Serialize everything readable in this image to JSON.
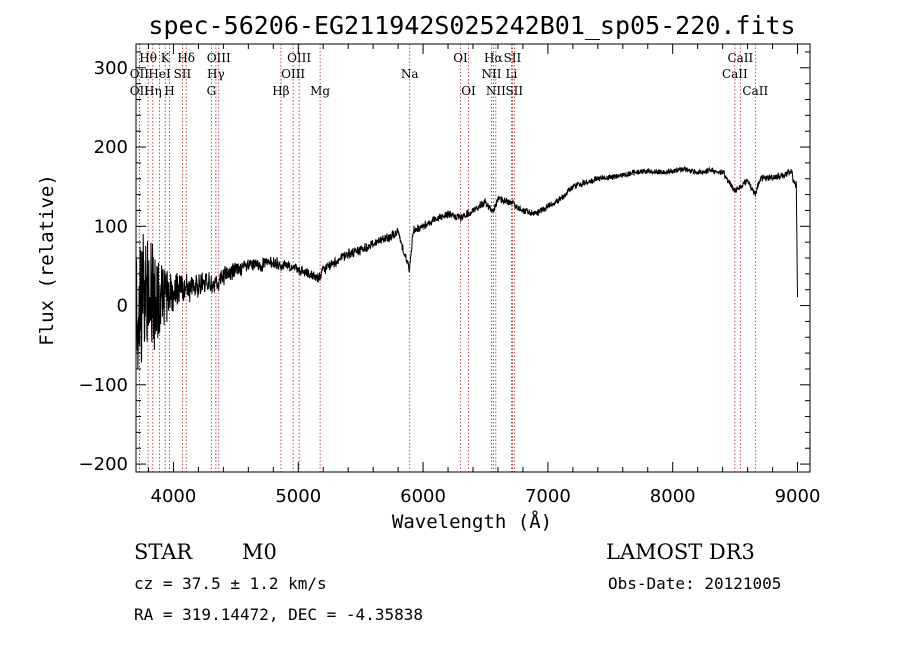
{
  "chart_data": {
    "type": "line",
    "title": "spec-56206-EG211942S025242B01_sp05-220.fits",
    "xlabel": "Wavelength (Å)",
    "ylabel": "Flux (relative)",
    "xlim": [
      3700,
      9100
    ],
    "ylim": [
      -210,
      330
    ],
    "x_ticks": [
      4000,
      5000,
      6000,
      7000,
      8000,
      9000
    ],
    "y_ticks": [
      -200,
      -100,
      0,
      100,
      200,
      300
    ],
    "x_tick_labels": [
      "4000",
      "5000",
      "6000",
      "7000",
      "8000",
      "9000"
    ],
    "y_tick_labels": [
      "−200",
      "−100",
      "0",
      "100",
      "200",
      "300"
    ],
    "spectrum_anchors": {
      "x": [
        3700,
        3750,
        3800,
        3850,
        3900,
        3950,
        4000,
        4050,
        4100,
        4200,
        4300,
        4340,
        4400,
        4500,
        4600,
        4700,
        4800,
        4861,
        4900,
        5000,
        5100,
        5175,
        5200,
        5300,
        5400,
        5500,
        5600,
        5700,
        5800,
        5893,
        5920,
        6000,
        6100,
        6200,
        6300,
        6400,
        6500,
        6563,
        6600,
        6700,
        6800,
        6900,
        7000,
        7100,
        7200,
        7300,
        7400,
        7500,
        7600,
        7700,
        7800,
        7900,
        8000,
        8100,
        8200,
        8300,
        8400,
        8498,
        8542,
        8600,
        8662,
        8700,
        8800,
        8900,
        8950,
        8990,
        9000
      ],
      "y": [
        5,
        10,
        15,
        10,
        12,
        14,
        18,
        20,
        22,
        25,
        30,
        28,
        38,
        45,
        50,
        52,
        55,
        50,
        52,
        45,
        38,
        35,
        45,
        55,
        65,
        70,
        78,
        85,
        92,
        45,
        95,
        100,
        110,
        115,
        110,
        120,
        130,
        118,
        135,
        130,
        120,
        115,
        125,
        135,
        150,
        155,
        160,
        162,
        165,
        168,
        170,
        168,
        170,
        172,
        168,
        170,
        168,
        145,
        150,
        158,
        140,
        160,
        162,
        165,
        168,
        150,
        10
      ]
    },
    "noise_amplitude_anchors": {
      "x": [
        3700,
        3800,
        3900,
        4000,
        4200,
        4500,
        5000,
        6000,
        7000,
        8000,
        8900,
        9000
      ],
      "y": [
        90,
        70,
        40,
        22,
        14,
        9,
        6,
        5,
        4,
        3,
        4,
        6
      ]
    },
    "spectral_lines": [
      {
        "label": "Hθ",
        "wavelength": 3797,
        "row": 1
      },
      {
        "label": "OII",
        "wavelength": 3727,
        "row": 2
      },
      {
        "label": "OII",
        "wavelength": 3727,
        "row": 3
      },
      {
        "label": "Hη",
        "wavelength": 3835,
        "row": 3
      },
      {
        "label": "HeI",
        "wavelength": 3889,
        "row": 2
      },
      {
        "label": "K",
        "wavelength": 3934,
        "row": 1
      },
      {
        "label": "H",
        "wavelength": 3968,
        "row": 3
      },
      {
        "label": "SII",
        "wavelength": 4072,
        "row": 2
      },
      {
        "label": "Hδ",
        "wavelength": 4102,
        "row": 1
      },
      {
        "label": "OIII",
        "wavelength": 4363,
        "row": 1
      },
      {
        "label": "Hγ",
        "wavelength": 4340,
        "row": 2
      },
      {
        "label": "G",
        "wavelength": 4304,
        "row": 3
      },
      {
        "label": "Hβ",
        "wavelength": 4861,
        "row": 3
      },
      {
        "label": "OIII",
        "wavelength": 4959,
        "row": 2
      },
      {
        "label": "OIII",
        "wavelength": 5007,
        "row": 1
      },
      {
        "label": "Mg",
        "wavelength": 5175,
        "row": 3
      },
      {
        "label": "Na",
        "wavelength": 5893,
        "row": 2
      },
      {
        "label": "OI",
        "wavelength": 6300,
        "row": 1
      },
      {
        "label": "OI",
        "wavelength": 6364,
        "row": 3
      },
      {
        "label": "Hα",
        "wavelength": 6563,
        "row": 1
      },
      {
        "label": "NII",
        "wavelength": 6548,
        "row": 2
      },
      {
        "label": "NII",
        "wavelength": 6583,
        "row": 3
      },
      {
        "label": "SII",
        "wavelength": 6716,
        "row": 1
      },
      {
        "label": "Li",
        "wavelength": 6708,
        "row": 2
      },
      {
        "label": "SII",
        "wavelength": 6731,
        "row": 3
      },
      {
        "label": "CaII",
        "wavelength": 8542,
        "row": 1
      },
      {
        "label": "CaII",
        "wavelength": 8498,
        "row": 2
      },
      {
        "label": "CaII",
        "wavelength": 8662,
        "row": 3
      }
    ],
    "line_color": "#000000",
    "marker_color": "#b22222"
  },
  "info": {
    "class_label": "STAR",
    "subclass": "M0",
    "survey": "LAMOST DR3",
    "redshift_text": "cz = 37.5 ± 1.2 km/s",
    "obs_date_text": "Obs-Date: 20121005",
    "coords_text": "RA = 319.14472, DEC =  -4.35838"
  }
}
